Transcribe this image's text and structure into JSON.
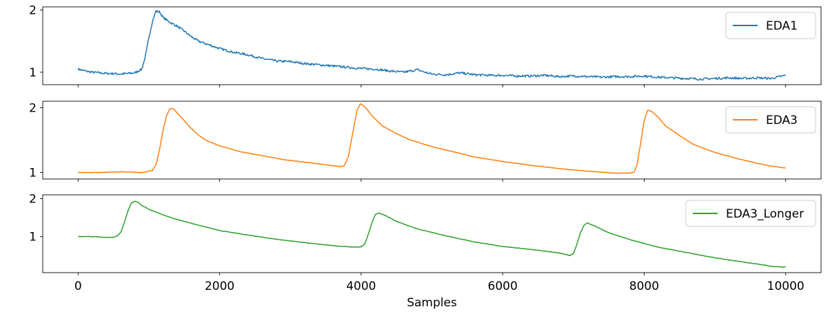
{
  "chart_data": [
    {
      "type": "line",
      "xlim": [
        -500,
        10500
      ],
      "ylim": [
        0.8,
        2.05
      ],
      "xticks": [
        0,
        2000,
        4000,
        6000,
        8000,
        10000
      ],
      "xtick_labels_visible": false,
      "yticks": [
        1,
        2
      ],
      "ytick_labels": [
        "1",
        "2"
      ],
      "legend": "top-right",
      "grid": false,
      "series": [
        {
          "name": "EDA1",
          "color": "#1f77b4",
          "noise": 0.018,
          "points": [
            [
              0,
              1.05
            ],
            [
              100,
              1.02
            ],
            [
              200,
              1.0
            ],
            [
              300,
              0.99
            ],
            [
              400,
              0.98
            ],
            [
              500,
              0.98
            ],
            [
              600,
              0.97
            ],
            [
              700,
              0.98
            ],
            [
              800,
              0.99
            ],
            [
              900,
              1.05
            ],
            [
              950,
              1.25
            ],
            [
              1000,
              1.55
            ],
            [
              1050,
              1.82
            ],
            [
              1100,
              1.98
            ],
            [
              1150,
              1.97
            ],
            [
              1200,
              1.88
            ],
            [
              1300,
              1.8
            ],
            [
              1400,
              1.74
            ],
            [
              1500,
              1.66
            ],
            [
              1600,
              1.57
            ],
            [
              1700,
              1.5
            ],
            [
              1800,
              1.46
            ],
            [
              2000,
              1.38
            ],
            [
              2200,
              1.32
            ],
            [
              2400,
              1.28
            ],
            [
              2600,
              1.22
            ],
            [
              2800,
              1.18
            ],
            [
              3000,
              1.17
            ],
            [
              3200,
              1.14
            ],
            [
              3400,
              1.12
            ],
            [
              3600,
              1.1
            ],
            [
              3800,
              1.08
            ],
            [
              4000,
              1.06
            ],
            [
              4200,
              1.05
            ],
            [
              4400,
              1.02
            ],
            [
              4600,
              1.0
            ],
            [
              4800,
              1.04
            ],
            [
              4900,
              1.0
            ],
            [
              5000,
              0.97
            ],
            [
              5200,
              0.96
            ],
            [
              5400,
              0.99
            ],
            [
              5600,
              0.96
            ],
            [
              5800,
              0.95
            ],
            [
              6000,
              0.95
            ],
            [
              6200,
              0.94
            ],
            [
              6400,
              0.94
            ],
            [
              6600,
              0.95
            ],
            [
              6800,
              0.93
            ],
            [
              7000,
              0.94
            ],
            [
              7200,
              0.93
            ],
            [
              7400,
              0.92
            ],
            [
              7600,
              0.93
            ],
            [
              7800,
              0.93
            ],
            [
              8000,
              0.94
            ],
            [
              8200,
              0.92
            ],
            [
              8400,
              0.91
            ],
            [
              8600,
              0.9
            ],
            [
              8800,
              0.89
            ],
            [
              9000,
              0.9
            ],
            [
              9200,
              0.91
            ],
            [
              9400,
              0.9
            ],
            [
              9600,
              0.91
            ],
            [
              9800,
              0.9
            ],
            [
              10000,
              0.95
            ]
          ]
        }
      ]
    },
    {
      "type": "line",
      "xlim": [
        -500,
        10500
      ],
      "ylim": [
        0.9,
        2.1
      ],
      "xticks": [
        0,
        2000,
        4000,
        6000,
        8000,
        10000
      ],
      "xtick_labels_visible": false,
      "yticks": [
        1,
        2
      ],
      "ytick_labels": [
        "1",
        "2"
      ],
      "legend": "top-right",
      "grid": false,
      "series": [
        {
          "name": "EDA3",
          "color": "#ff7f0e",
          "noise": 0.004,
          "points": [
            [
              0,
              1.0
            ],
            [
              300,
              1.0
            ],
            [
              600,
              1.01
            ],
            [
              900,
              1.0
            ],
            [
              1050,
              1.03
            ],
            [
              1100,
              1.12
            ],
            [
              1150,
              1.35
            ],
            [
              1200,
              1.65
            ],
            [
              1250,
              1.88
            ],
            [
              1300,
              1.99
            ],
            [
              1350,
              1.98
            ],
            [
              1400,
              1.92
            ],
            [
              1500,
              1.8
            ],
            [
              1600,
              1.68
            ],
            [
              1700,
              1.58
            ],
            [
              1800,
              1.5
            ],
            [
              2000,
              1.41
            ],
            [
              2300,
              1.32
            ],
            [
              2600,
              1.26
            ],
            [
              2900,
              1.2
            ],
            [
              3200,
              1.16
            ],
            [
              3500,
              1.12
            ],
            [
              3700,
              1.09
            ],
            [
              3760,
              1.1
            ],
            [
              3820,
              1.25
            ],
            [
              3880,
              1.6
            ],
            [
              3940,
              1.95
            ],
            [
              3990,
              2.06
            ],
            [
              4050,
              2.02
            ],
            [
              4150,
              1.88
            ],
            [
              4300,
              1.72
            ],
            [
              4500,
              1.6
            ],
            [
              4700,
              1.5
            ],
            [
              5000,
              1.4
            ],
            [
              5300,
              1.32
            ],
            [
              5600,
              1.24
            ],
            [
              6000,
              1.17
            ],
            [
              6400,
              1.11
            ],
            [
              6800,
              1.06
            ],
            [
              7200,
              1.02
            ],
            [
              7600,
              0.99
            ],
            [
              7800,
              0.99
            ],
            [
              7860,
              1.01
            ],
            [
              7900,
              1.12
            ],
            [
              7950,
              1.45
            ],
            [
              8000,
              1.8
            ],
            [
              8050,
              1.96
            ],
            [
              8100,
              1.95
            ],
            [
              8200,
              1.85
            ],
            [
              8300,
              1.72
            ],
            [
              8500,
              1.57
            ],
            [
              8700,
              1.43
            ],
            [
              9000,
              1.31
            ],
            [
              9300,
              1.22
            ],
            [
              9600,
              1.14
            ],
            [
              9800,
              1.1
            ],
            [
              10000,
              1.07
            ]
          ]
        }
      ]
    },
    {
      "type": "line",
      "xlim": [
        -500,
        10500
      ],
      "ylim": [
        0.05,
        2.1
      ],
      "xticks": [
        0,
        2000,
        4000,
        6000,
        8000,
        10000
      ],
      "xtick_labels": [
        "0",
        "2000",
        "4000",
        "6000",
        "8000",
        "10000"
      ],
      "xlabel": "Samples",
      "yticks": [
        1,
        2
      ],
      "ytick_labels": [
        "1",
        "2"
      ],
      "legend": "top-right",
      "grid": false,
      "series": [
        {
          "name": "EDA3_Longer",
          "color": "#2ca02c",
          "noise": 0.006,
          "points": [
            [
              0,
              1.0
            ],
            [
              200,
              1.0
            ],
            [
              400,
              0.98
            ],
            [
              500,
              0.98
            ],
            [
              550,
              1.02
            ],
            [
              600,
              1.1
            ],
            [
              650,
              1.35
            ],
            [
              700,
              1.65
            ],
            [
              750,
              1.88
            ],
            [
              800,
              1.93
            ],
            [
              850,
              1.9
            ],
            [
              900,
              1.82
            ],
            [
              1000,
              1.72
            ],
            [
              1200,
              1.57
            ],
            [
              1400,
              1.45
            ],
            [
              1600,
              1.35
            ],
            [
              2000,
              1.16
            ],
            [
              2400,
              1.04
            ],
            [
              2800,
              0.93
            ],
            [
              3200,
              0.84
            ],
            [
              3600,
              0.76
            ],
            [
              3900,
              0.72
            ],
            [
              4000,
              0.73
            ],
            [
              4050,
              0.8
            ],
            [
              4100,
              1.05
            ],
            [
              4150,
              1.35
            ],
            [
              4200,
              1.58
            ],
            [
              4250,
              1.62
            ],
            [
              4350,
              1.55
            ],
            [
              4500,
              1.4
            ],
            [
              4800,
              1.2
            ],
            [
              5200,
              1.02
            ],
            [
              5600,
              0.86
            ],
            [
              6000,
              0.74
            ],
            [
              6400,
              0.66
            ],
            [
              6800,
              0.57
            ],
            [
              6950,
              0.5
            ],
            [
              7000,
              0.55
            ],
            [
              7050,
              0.8
            ],
            [
              7100,
              1.1
            ],
            [
              7150,
              1.3
            ],
            [
              7200,
              1.36
            ],
            [
              7300,
              1.28
            ],
            [
              7500,
              1.1
            ],
            [
              7800,
              0.92
            ],
            [
              8200,
              0.72
            ],
            [
              8600,
              0.58
            ],
            [
              9000,
              0.44
            ],
            [
              9400,
              0.33
            ],
            [
              9700,
              0.25
            ],
            [
              9800,
              0.21
            ],
            [
              10000,
              0.2
            ]
          ]
        }
      ]
    }
  ]
}
